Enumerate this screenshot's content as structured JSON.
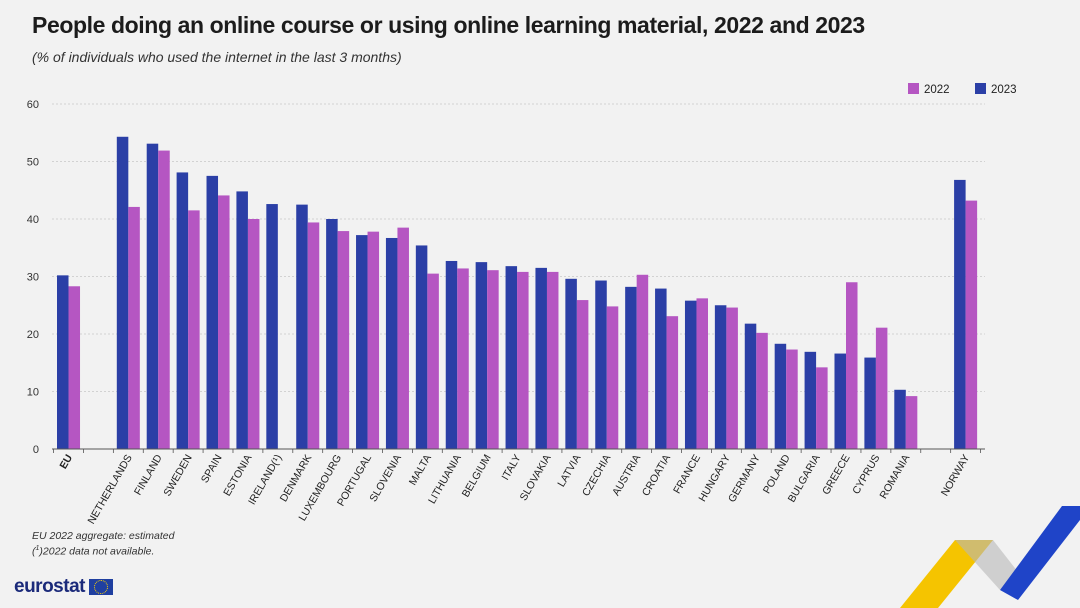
{
  "title": "People doing an online course or using online learning material, 2022 and 2023",
  "subtitle": "(% of individuals who used the internet in the last 3 months)",
  "footnotes": {
    "line1": "EU 2022 aggregate: estimated",
    "line2_sup": "1",
    "line2_text": "2022 data not available."
  },
  "logo": {
    "text": "eurostat",
    "icon": "eu-flag-icon"
  },
  "colors": {
    "series_2022": "#b556c2",
    "series_2023": "#2b3fa6",
    "background": "#f2f2f2",
    "gridline": "#c8c8c8",
    "deco_yellow": "#f5c400",
    "deco_blue": "#1f44c8",
    "deco_gray": "#b8b8b8"
  },
  "chart_data": {
    "type": "bar",
    "legend_position": "top-right",
    "grid": true,
    "ylim": [
      0,
      60
    ],
    "yticks": [
      0,
      10,
      20,
      30,
      40,
      50,
      60
    ],
    "categories": [
      "EU",
      "NETHERLANDS",
      "FINLAND",
      "SWEDEN",
      "SPAIN",
      "ESTONIA",
      "IRELAND(¹)",
      "DENMARK",
      "LUXEMBOURG",
      "PORTUGAL",
      "SLOVENIA",
      "MALTA",
      "LITHUANIA",
      "BELGIUM",
      "ITALY",
      "SLOVAKIA",
      "LATVIA",
      "CZECHIA",
      "AUSTRIA",
      "CROATIA",
      "FRANCE",
      "HUNGARY",
      "GERMANY",
      "POLAND",
      "BULGARIA",
      "GREECE",
      "CYPRUS",
      "ROMANIA",
      "NORWAY"
    ],
    "bold_categories": [
      "EU"
    ],
    "group_breaks_after": [
      "EU",
      "ROMANIA"
    ],
    "series": [
      {
        "name": "2023",
        "values": [
          30.2,
          54.3,
          53.1,
          48.1,
          47.5,
          44.8,
          42.6,
          42.5,
          40.0,
          37.2,
          36.7,
          35.4,
          32.7,
          32.5,
          31.8,
          31.5,
          29.6,
          29.3,
          28.2,
          27.9,
          25.8,
          25.0,
          21.8,
          18.3,
          16.9,
          16.6,
          15.9,
          10.3,
          46.8
        ]
      },
      {
        "name": "2022",
        "values": [
          28.3,
          42.1,
          51.9,
          41.5,
          44.1,
          40.0,
          null,
          39.4,
          37.9,
          37.8,
          38.5,
          30.5,
          31.4,
          31.1,
          30.8,
          30.8,
          25.9,
          24.8,
          30.3,
          23.1,
          26.2,
          24.6,
          20.2,
          17.3,
          14.2,
          29.0,
          21.1,
          9.2,
          43.2
        ]
      }
    ]
  }
}
